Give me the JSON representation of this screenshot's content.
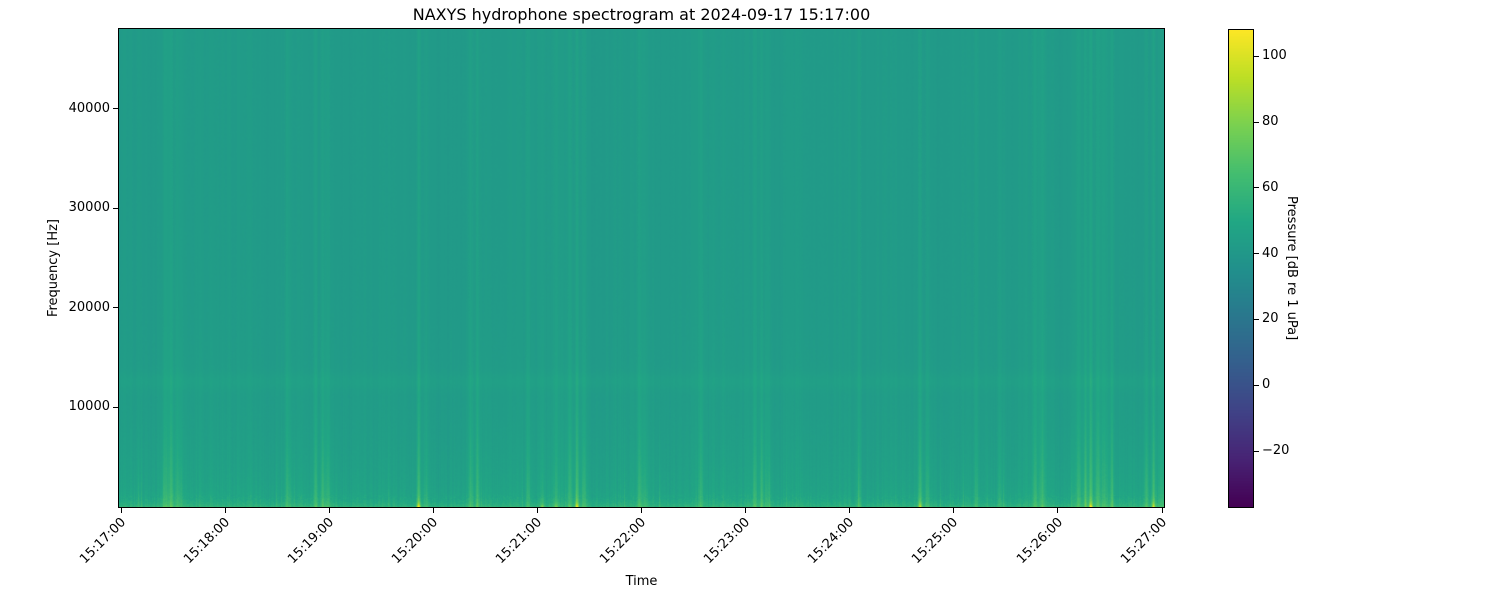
{
  "chart_data": {
    "type": "heatmap",
    "subtype": "spectrogram",
    "title": "NAXYS hydrophone spectrogram at 2024-09-17 15:17:00",
    "xlabel": "Time",
    "ylabel": "Frequency [Hz]",
    "colorbar_label": "Pressure [dB re 1 uPa]",
    "colormap": "viridis",
    "grid": false,
    "legend": "none",
    "x_tick_labels": [
      "15:17:00",
      "15:18:00",
      "15:19:00",
      "15:20:00",
      "15:21:00",
      "15:22:00",
      "15:23:00",
      "15:24:00",
      "15:25:00",
      "15:26:00",
      "15:27:00"
    ],
    "x_span_seconds": 600,
    "y_ticks": [
      10000,
      20000,
      30000,
      40000
    ],
    "ylim": [
      0,
      48000
    ],
    "color_range": [
      -37,
      108
    ],
    "colorbar_ticks": [
      100,
      80,
      60,
      40,
      20,
      0,
      -20
    ],
    "background_levels_db": {
      "high_frequency_base": 42,
      "low_frequency_rise": 6,
      "surface_band_rise": 9,
      "band_center_hz": 12600,
      "band_boost": 2.2
    },
    "transient_events": [
      {
        "t": 27,
        "strength": 10,
        "width": 1.2
      },
      {
        "t": 30,
        "strength": 14,
        "width": 0.8
      },
      {
        "t": 34,
        "strength": 8,
        "width": 1.5
      },
      {
        "t": 97,
        "strength": 9,
        "width": 1.4
      },
      {
        "t": 113,
        "strength": 12,
        "width": 0.8
      },
      {
        "t": 117,
        "strength": 15,
        "width": 0.7
      },
      {
        "t": 120,
        "strength": 9,
        "width": 1.2
      },
      {
        "t": 172,
        "strength": 20,
        "width": 0.7,
        "bottom_boost": 38
      },
      {
        "t": 176,
        "strength": 10,
        "width": 1.0
      },
      {
        "t": 202,
        "strength": 11,
        "width": 1.0
      },
      {
        "t": 206,
        "strength": 13,
        "width": 0.8
      },
      {
        "t": 235,
        "strength": 10,
        "width": 0.9
      },
      {
        "t": 243,
        "strength": 8,
        "width": 0.8,
        "bottom_boost": 18
      },
      {
        "t": 251,
        "strength": 8,
        "width": 0.8,
        "bottom_boost": 14
      },
      {
        "t": 259,
        "strength": 12,
        "width": 0.8
      },
      {
        "t": 263,
        "strength": 18,
        "width": 0.7,
        "bottom_boost": 34
      },
      {
        "t": 267,
        "strength": 12,
        "width": 1.0
      },
      {
        "t": 299,
        "strength": 13,
        "width": 0.8
      },
      {
        "t": 302,
        "strength": 9,
        "width": 1.2
      },
      {
        "t": 334,
        "strength": 10,
        "width": 1.0
      },
      {
        "t": 365,
        "strength": 12,
        "width": 0.8
      },
      {
        "t": 369,
        "strength": 14,
        "width": 0.7
      },
      {
        "t": 372,
        "strength": 9,
        "width": 1.2
      },
      {
        "t": 425,
        "strength": 11,
        "width": 0.9
      },
      {
        "t": 460,
        "strength": 16,
        "width": 0.7,
        "bottom_boost": 30
      },
      {
        "t": 464,
        "strength": 10,
        "width": 1.0
      },
      {
        "t": 492,
        "strength": 12,
        "width": 0.8
      },
      {
        "t": 506,
        "strength": 9,
        "width": 1.0
      },
      {
        "t": 526,
        "strength": 11,
        "width": 0.9
      },
      {
        "t": 530,
        "strength": 13,
        "width": 0.8
      },
      {
        "t": 551,
        "strength": 12,
        "width": 0.9
      },
      {
        "t": 555,
        "strength": 16,
        "width": 0.7
      },
      {
        "t": 558,
        "strength": 20,
        "width": 0.7,
        "bottom_boost": 36
      },
      {
        "t": 562,
        "strength": 13,
        "width": 0.9
      },
      {
        "t": 566,
        "strength": 10,
        "width": 1.2
      },
      {
        "t": 570,
        "strength": 12,
        "width": 0.8
      },
      {
        "t": 590,
        "strength": 13,
        "width": 0.8
      },
      {
        "t": 594,
        "strength": 17,
        "width": 0.7,
        "bottom_boost": 28
      },
      {
        "t": 598,
        "strength": 10,
        "width": 1.0
      }
    ],
    "background_clusters": [
      {
        "t": 30,
        "width": 8,
        "boost": 2
      },
      {
        "t": 112,
        "width": 10,
        "boost": 2
      },
      {
        "t": 205,
        "width": 8,
        "boost": 1.5
      },
      {
        "t": 263,
        "width": 10,
        "boost": 2
      },
      {
        "t": 300,
        "width": 7,
        "boost": 1.5
      },
      {
        "t": 368,
        "width": 8,
        "boost": 2
      },
      {
        "t": 462,
        "width": 8,
        "boost": 2
      },
      {
        "t": 528,
        "width": 9,
        "boost": 1.5
      },
      {
        "t": 560,
        "width": 12,
        "boost": 2.5
      },
      {
        "t": 592,
        "width": 8,
        "boost": 2
      }
    ]
  }
}
